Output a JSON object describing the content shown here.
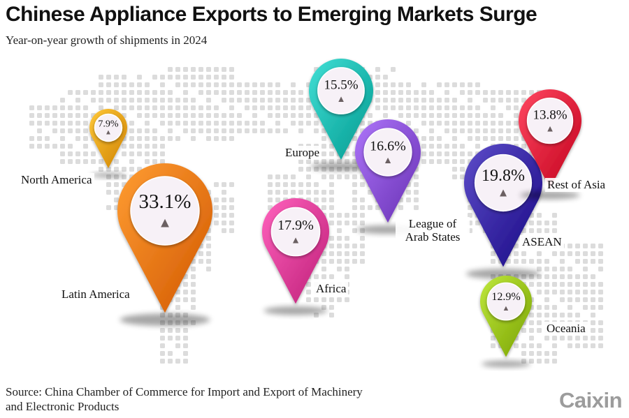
{
  "title": "Chinese Appliance Exports to Emerging Markets Surge",
  "subtitle": "Year-on-year growth of shipments in 2024",
  "source_line1": "Source: China Chamber of Commerce for Import and Export of Machinery",
  "source_line2": "and Electronic Products",
  "logo": "Caixin",
  "growth_marker": "▲",
  "chart_data": {
    "type": "map-pins",
    "title": "Chinese Appliance Exports to Emerging Markets Surge",
    "subtitle": "Year-on-year growth of shipments in 2024",
    "unit": "%",
    "regions": [
      {
        "name": "North America",
        "value": 7.9,
        "label": "7.9%",
        "color": "#f2a516"
      },
      {
        "name": "Latin America",
        "value": 33.1,
        "label": "33.1%",
        "color": "#f47a10"
      },
      {
        "name": "Europe",
        "value": 15.5,
        "label": "15.5%",
        "color": "#1fbcb2"
      },
      {
        "name": "Africa",
        "value": 17.9,
        "label": "17.9%",
        "color": "#e0409a"
      },
      {
        "name": "League of Arab States",
        "value": 16.6,
        "label": "16.6%",
        "color": "#8a52d6"
      },
      {
        "name": "ASEAN",
        "value": 19.8,
        "label": "19.8%",
        "color": "#3a2aa6"
      },
      {
        "name": "Rest of Asia",
        "value": 13.8,
        "label": "13.8%",
        "color": "#e4243e"
      },
      {
        "name": "Oceania",
        "value": 12.9,
        "label": "12.9%",
        "color": "#9cc51a"
      }
    ]
  }
}
